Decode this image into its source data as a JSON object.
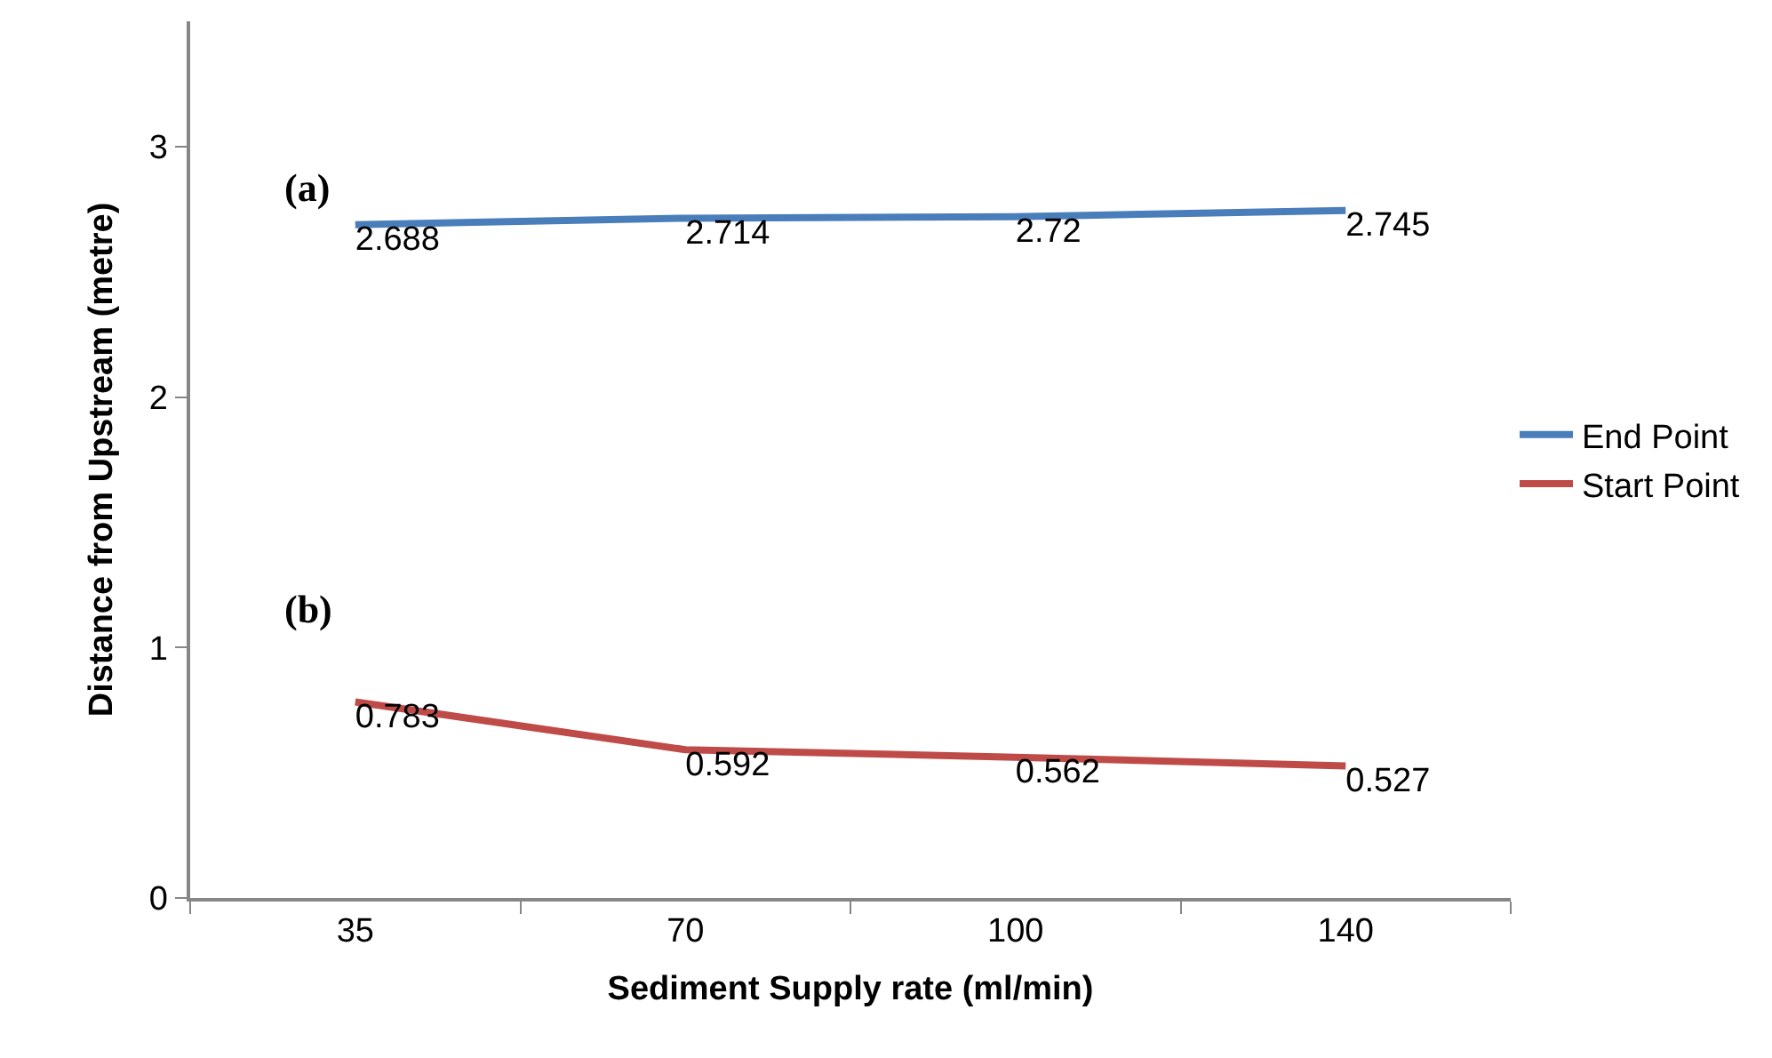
{
  "chart_data": {
    "type": "line",
    "xlabel": "Sediment Supply rate (ml/min)",
    "ylabel": "Distance from Upstream (metre)",
    "categories": [
      "35",
      "70",
      "100",
      "140"
    ],
    "series": [
      {
        "name": "End Point",
        "color": "#4a7ebb",
        "values": [
          2.688,
          2.714,
          2.72,
          2.745
        ]
      },
      {
        "name": "Start Point",
        "color": "#be4b48",
        "values": [
          0.783,
          0.592,
          0.562,
          0.527
        ]
      }
    ],
    "ylim": [
      0,
      3.5
    ],
    "yticks": [
      0,
      1,
      2,
      3
    ],
    "grid": false,
    "legend": "right",
    "marker": "none",
    "line_style": "solid",
    "data_labels": true,
    "annotations": [
      "(a)",
      "(b)"
    ]
  }
}
